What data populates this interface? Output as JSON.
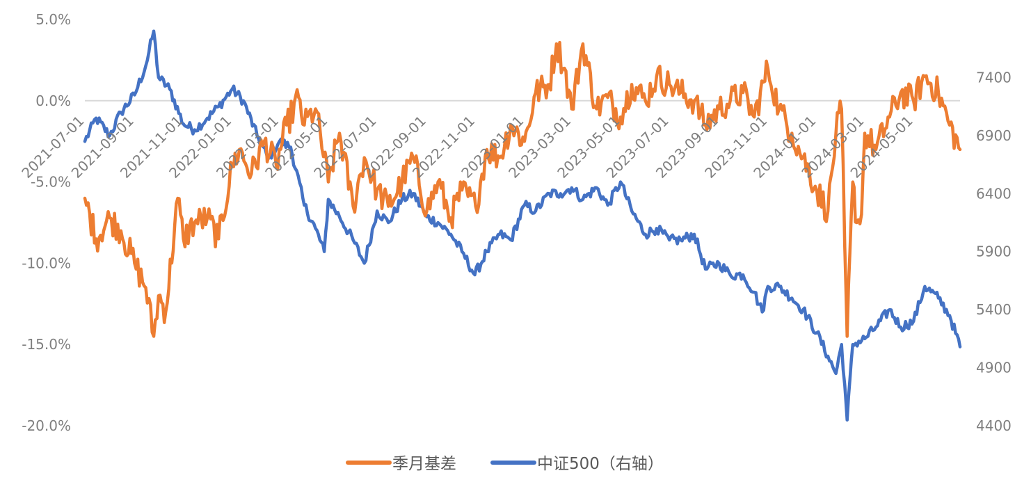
{
  "chart_data": {
    "type": "line",
    "title": "",
    "grid": false,
    "legend_position": "bottom",
    "x_tick_labels": [
      "2021-07-01",
      "2021-09-01",
      "2021-11-01",
      "2022-01-01",
      "2022-03-01",
      "2022-05-01",
      "2022-07-01",
      "2022-09-01",
      "2022-11-01",
      "2023-01-01",
      "2023-03-01",
      "2023-05-01",
      "2023-07-01",
      "2023-09-01",
      "2023-11-01",
      "2024-01-01",
      "2024-03-01",
      "2024-05-01"
    ],
    "x_range": [
      "2021-07-01",
      "2024-06-28"
    ],
    "left_axis": {
      "ylim": [
        -20,
        5
      ],
      "ticks": [
        5,
        0,
        -5,
        -10,
        -15,
        -20
      ],
      "tick_labels": [
        "5.0%",
        "0.0%",
        "-5.0%",
        "-10.0%",
        "-15.0%",
        "-20.0%"
      ],
      "zero_line": true
    },
    "right_axis": {
      "ylim": [
        4400,
        7900
      ],
      "ticks": [
        7400,
        6900,
        6400,
        5900,
        5400,
        4900,
        4400
      ],
      "tick_labels": [
        "7400",
        "6900",
        "6400",
        "5900",
        "5400",
        "4900",
        "4400"
      ]
    },
    "series": [
      {
        "name": "季月基差",
        "axis": "left",
        "color": "#ed7d31",
        "x": [
          "2021-07-01",
          "2021-07-15",
          "2021-08-01",
          "2021-08-15",
          "2021-09-01",
          "2021-09-15",
          "2021-09-25",
          "2021-10-01",
          "2021-10-10",
          "2021-10-25",
          "2021-11-01",
          "2021-11-15",
          "2021-12-01",
          "2021-12-15",
          "2022-01-01",
          "2022-01-10",
          "2022-01-25",
          "2022-02-10",
          "2022-02-25",
          "2022-03-10",
          "2022-03-25",
          "2022-04-01",
          "2022-04-15",
          "2022-05-01",
          "2022-05-15",
          "2022-06-01",
          "2022-06-15",
          "2022-07-01",
          "2022-07-15",
          "2022-08-01",
          "2022-08-15",
          "2022-09-01",
          "2022-09-15",
          "2022-10-01",
          "2022-10-15",
          "2022-11-01",
          "2022-11-15",
          "2022-12-01",
          "2022-12-15",
          "2023-01-01",
          "2023-01-15",
          "2023-02-01",
          "2023-02-10",
          "2023-02-20",
          "2023-03-01",
          "2023-03-15",
          "2023-04-01",
          "2023-04-15",
          "2023-05-01",
          "2023-05-15",
          "2023-06-01",
          "2023-06-15",
          "2023-07-01",
          "2023-07-15",
          "2023-08-01",
          "2023-08-15",
          "2023-09-01",
          "2023-09-15",
          "2023-10-01",
          "2023-10-15",
          "2023-11-01",
          "2023-11-15",
          "2023-12-01",
          "2023-12-15",
          "2024-01-01",
          "2024-01-15",
          "2024-01-25",
          "2024-02-01",
          "2024-02-05",
          "2024-02-08",
          "2024-02-15",
          "2024-02-20",
          "2024-02-26",
          "2024-03-01",
          "2024-03-15",
          "2024-04-01",
          "2024-04-15",
          "2024-05-01",
          "2024-05-15",
          "2024-06-01",
          "2024-06-15",
          "2024-06-28"
        ],
        "values": [
          -6.0,
          -8.5,
          -7.2,
          -8.0,
          -10.0,
          -11.5,
          -14.5,
          -12.0,
          -13.0,
          -6.0,
          -8.5,
          -7.5,
          -7.2,
          -8.5,
          -4.0,
          -3.0,
          -4.5,
          -2.5,
          -4.0,
          -1.5,
          0.2,
          -1.5,
          -0.5,
          -5.0,
          -2.0,
          -6.5,
          -3.5,
          -5.5,
          -6.5,
          -5.0,
          -3.5,
          -6.8,
          -5.0,
          -7.2,
          -5.5,
          -6.5,
          -3.0,
          -3.5,
          -1.5,
          -2.5,
          0.5,
          1.0,
          3.5,
          2.0,
          -0.5,
          3.5,
          -0.5,
          0.2,
          -1.0,
          1.0,
          0.0,
          1.5,
          1.0,
          0.5,
          0.0,
          -1.5,
          -0.5,
          0.0,
          0.5,
          -1.0,
          2.0,
          -0.5,
          -2.0,
          -3.5,
          -5.5,
          -6.8,
          -2.0,
          -0.5,
          -9.0,
          -14.5,
          -5.0,
          -7.5,
          -7.0,
          -2.0,
          -3.0,
          -1.0,
          0.5,
          0.0,
          1.5,
          0.5,
          -1.5,
          -3.0
        ]
      },
      {
        "name": "中证500（右轴）",
        "axis": "right",
        "color": "#4472c4",
        "x": [
          "2021-07-01",
          "2021-07-15",
          "2021-08-01",
          "2021-08-15",
          "2021-09-01",
          "2021-09-15",
          "2021-09-25",
          "2021-10-01",
          "2021-10-15",
          "2021-11-01",
          "2021-11-15",
          "2021-12-01",
          "2021-12-15",
          "2022-01-01",
          "2022-01-15",
          "2022-02-01",
          "2022-02-15",
          "2022-03-01",
          "2022-03-15",
          "2022-04-01",
          "2022-04-15",
          "2022-04-26",
          "2022-05-01",
          "2022-05-15",
          "2022-06-01",
          "2022-06-15",
          "2022-07-01",
          "2022-07-15",
          "2022-08-01",
          "2022-08-15",
          "2022-09-01",
          "2022-09-15",
          "2022-10-01",
          "2022-10-15",
          "2022-10-31",
          "2022-11-15",
          "2022-12-01",
          "2022-12-15",
          "2023-01-01",
          "2023-01-15",
          "2023-02-01",
          "2023-02-15",
          "2023-03-01",
          "2023-03-15",
          "2023-04-01",
          "2023-04-15",
          "2023-05-01",
          "2023-05-15",
          "2023-06-01",
          "2023-06-15",
          "2023-07-01",
          "2023-07-15",
          "2023-08-01",
          "2023-08-15",
          "2023-09-01",
          "2023-09-15",
          "2023-10-01",
          "2023-10-15",
          "2023-10-25",
          "2023-11-01",
          "2023-11-15",
          "2023-12-01",
          "2023-12-15",
          "2024-01-01",
          "2024-01-15",
          "2024-01-25",
          "2024-02-01",
          "2024-02-05",
          "2024-02-08",
          "2024-02-15",
          "2024-03-01",
          "2024-03-15",
          "2024-04-01",
          "2024-04-15",
          "2024-05-01",
          "2024-05-15",
          "2024-06-01",
          "2024-06-15",
          "2024-06-28"
        ],
        "values": [
          6850,
          7050,
          6900,
          7100,
          7250,
          7500,
          7800,
          7400,
          7300,
          7000,
          6950,
          7050,
          7150,
          7300,
          7200,
          6900,
          6700,
          6850,
          6800,
          6300,
          6100,
          5900,
          6350,
          6200,
          6000,
          5800,
          6250,
          6150,
          6350,
          6400,
          6200,
          6150,
          6050,
          5900,
          5700,
          5900,
          6050,
          6000,
          6300,
          6250,
          6400,
          6400,
          6450,
          6350,
          6450,
          6300,
          6500,
          6250,
          6050,
          6100,
          6000,
          6000,
          6050,
          5750,
          5800,
          5700,
          5700,
          5550,
          5380,
          5600,
          5600,
          5500,
          5400,
          5200,
          5000,
          4850,
          5100,
          4750,
          4450,
          5100,
          5150,
          5250,
          5400,
          5250,
          5300,
          5600,
          5500,
          5350,
          5080
        ]
      }
    ]
  }
}
